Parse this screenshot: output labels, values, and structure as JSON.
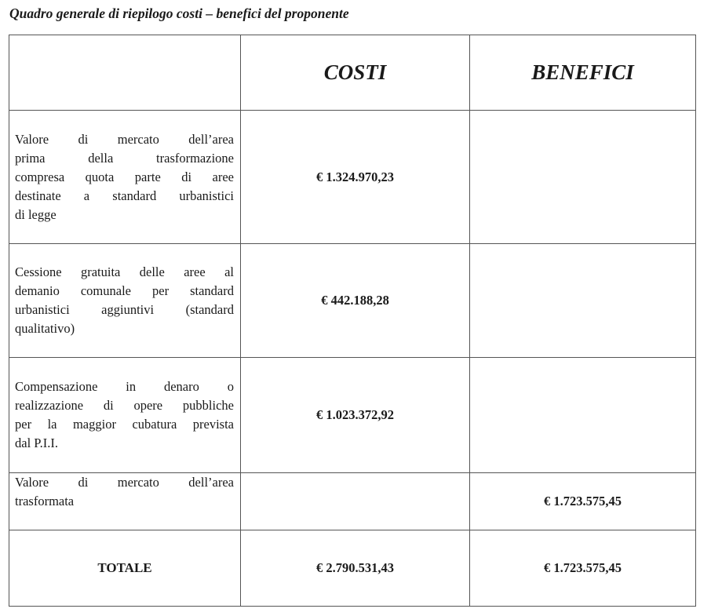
{
  "title": "Quadro generale di riepilogo costi – benefici del proponente",
  "headers": {
    "costi": "COSTI",
    "benefici": "BENEFICI"
  },
  "rows": [
    {
      "lines": [
        "Valore di mercato dell’area",
        "prima della trasformazione",
        "compresa quota parte di aree",
        "destinate a standard urbanistici",
        "di legge"
      ],
      "costi": "€ 1.324.970,23",
      "benefici": ""
    },
    {
      "lines": [
        "Cessione gratuita delle aree al",
        "demanio comunale per standard",
        "urbanistici aggiuntivi (standard",
        "qualitativo)"
      ],
      "costi": "€ 442.188,28",
      "benefici": ""
    },
    {
      "lines": [
        "Compensazione in denaro o",
        "realizzazione di opere pubbliche",
        "per la maggior cubatura prevista",
        "dal P.I.I."
      ],
      "costi": "€ 1.023.372,92",
      "benefici": ""
    },
    {
      "lines": [
        "Valore di mercato dell’area",
        "trasformata"
      ],
      "costi": "",
      "benefici": "€ 1.723.575,45"
    }
  ],
  "total": {
    "label": "TOTALE",
    "costi": "€ 2.790.531,43",
    "benefici": "€ 1.723.575,45"
  }
}
